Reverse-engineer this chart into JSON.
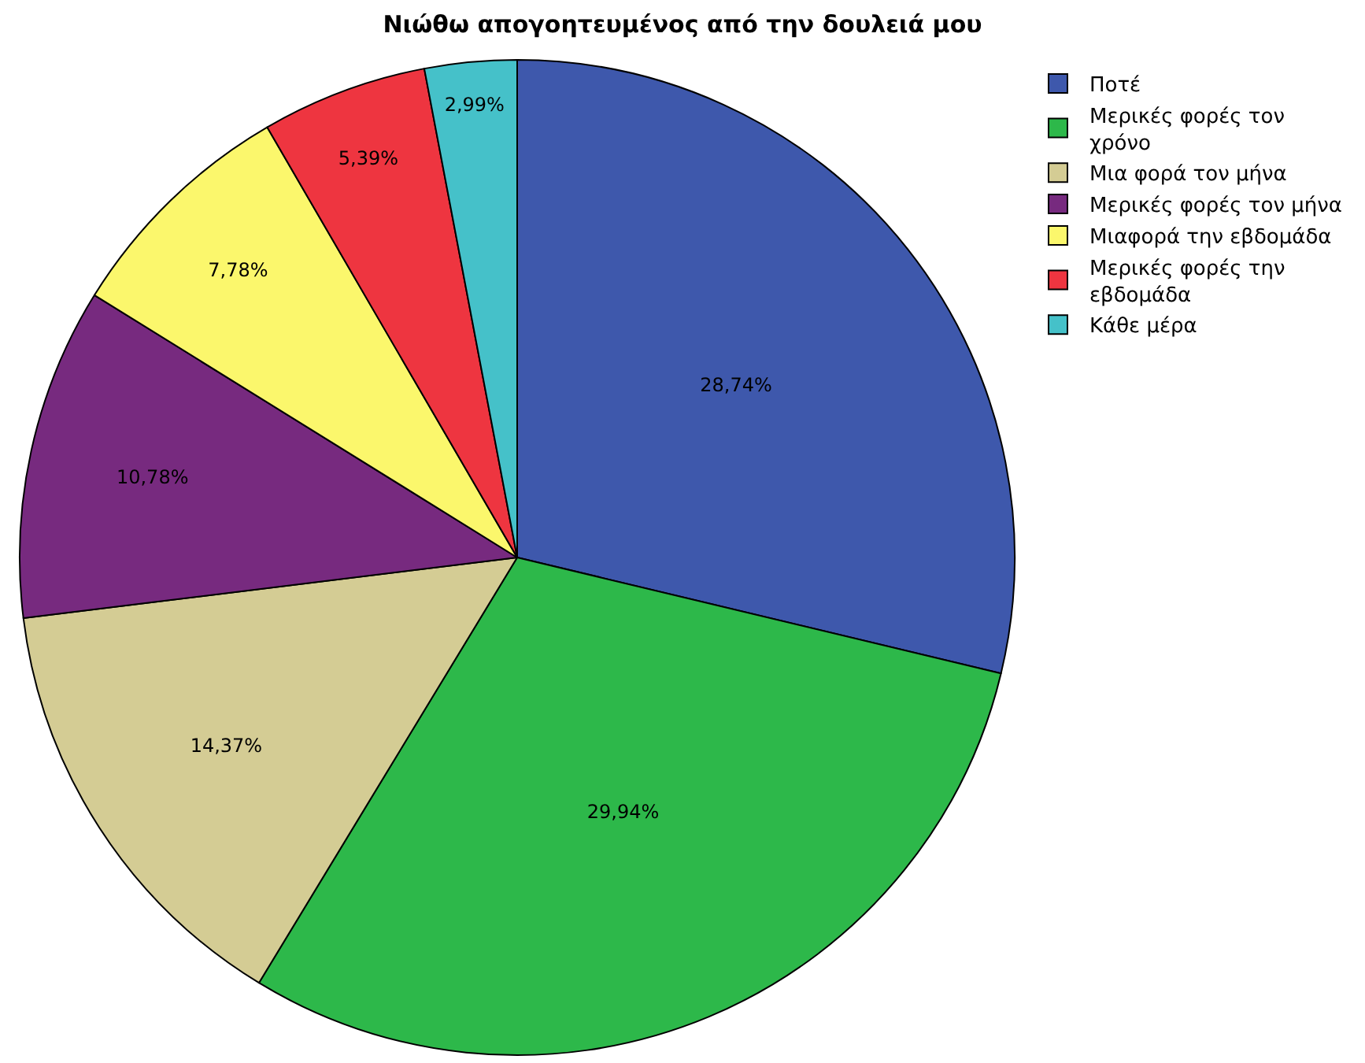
{
  "chart_data": {
    "type": "pie",
    "title": "Νιώθω απογοητευμένος από την δουλειά μου",
    "categories": [
      "Ποτέ",
      "Μερικές φορές τον χρόνο",
      "Μια φορά τον μήνα",
      "Μερικές φορές τον μήνα",
      "Μιαφορά την εβδομάδα",
      "Μερικές φορές την εβδομάδα",
      "Κάθε μέρα"
    ],
    "values": [
      28.74,
      29.94,
      14.37,
      10.78,
      7.78,
      5.39,
      2.99
    ],
    "value_labels": [
      "28,74%",
      "29,94%",
      "14,37%",
      "10,78%",
      "7,78%",
      "5,39%",
      "2,99%"
    ],
    "colors": [
      "#3e58ac",
      "#2db84a",
      "#d4cc94",
      "#772a7f",
      "#fbf76c",
      "#ee3540",
      "#45c1c9"
    ],
    "legend": "top right"
  }
}
